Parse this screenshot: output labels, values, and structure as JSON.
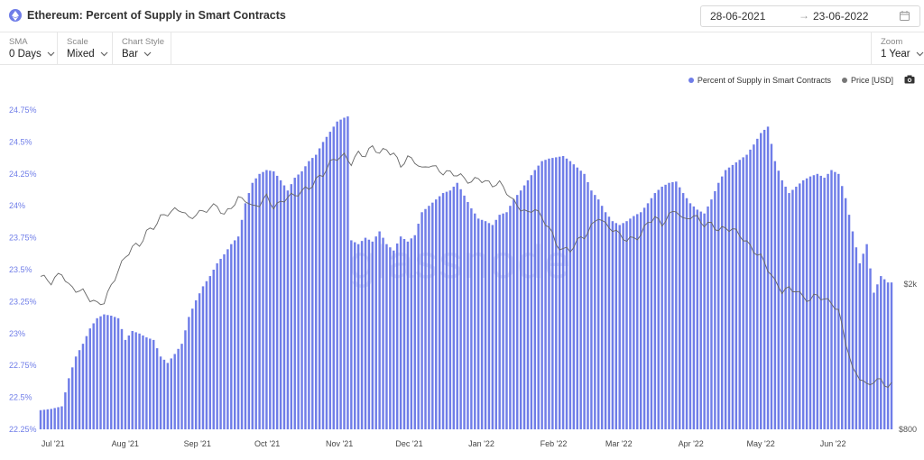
{
  "header": {
    "title": "Ethereum: Percent of Supply in Smart Contracts",
    "date_start": "28-06-2021",
    "date_arrow": "→",
    "date_end": "23-06-2022"
  },
  "controls": [
    {
      "label": "SMA",
      "value": "0 Days"
    },
    {
      "label": "Scale",
      "value": "Mixed"
    },
    {
      "label": "Chart Style",
      "value": "Bar"
    }
  ],
  "zoom": {
    "label": "Zoom",
    "value": "1 Year"
  },
  "legend": [
    {
      "name": "Percent of Supply in Smart Contracts",
      "color": "#6f7de8"
    },
    {
      "name": "Price [USD]",
      "color": "#777777"
    }
  ],
  "watermark": "glassnode",
  "icons": {
    "asset": "ethereum-icon",
    "calendar": "calendar-icon",
    "dropdown": "chevron-down-icon",
    "export": "camera-icon"
  },
  "chart_data": {
    "type": "bar",
    "x_labels": [
      "Jul '21",
      "Aug '21",
      "Sep '21",
      "Oct '21",
      "Nov '21",
      "Dec '21",
      "Jan '22",
      "Feb '22",
      "Mar '22",
      "Apr '22",
      "May '22",
      "Jun '22"
    ],
    "y_left": {
      "ticks": [
        "22.25%",
        "22.5%",
        "22.75%",
        "23%",
        "23.25%",
        "23.5%",
        "23.75%",
        "24%",
        "24.25%",
        "24.5%",
        "24.75%"
      ],
      "range": [
        22.25,
        24.75
      ]
    },
    "y_right": {
      "ticks": [
        "$800",
        "$2k"
      ],
      "scale": "log",
      "range": [
        800,
        6000
      ]
    },
    "series": [
      {
        "name": "Percent of Supply in Smart Contracts",
        "kind": "bar",
        "points": [
          [
            0,
            22.4
          ],
          [
            3,
            22.41
          ],
          [
            6,
            22.43
          ],
          [
            8,
            22.65
          ],
          [
            10,
            22.82
          ],
          [
            12,
            22.92
          ],
          [
            14,
            23.04
          ],
          [
            16,
            23.12
          ],
          [
            18,
            23.15
          ],
          [
            20,
            23.14
          ],
          [
            22,
            23.12
          ],
          [
            24,
            22.95
          ],
          [
            26,
            23.02
          ],
          [
            28,
            23.0
          ],
          [
            30,
            22.97
          ],
          [
            32,
            22.95
          ],
          [
            34,
            22.82
          ],
          [
            36,
            22.77
          ],
          [
            38,
            22.84
          ],
          [
            40,
            22.92
          ],
          [
            42,
            23.13
          ],
          [
            44,
            23.26
          ],
          [
            46,
            23.37
          ],
          [
            48,
            23.45
          ],
          [
            50,
            23.55
          ],
          [
            52,
            23.62
          ],
          [
            54,
            23.7
          ],
          [
            56,
            23.76
          ],
          [
            58,
            24.02
          ],
          [
            60,
            24.18
          ],
          [
            62,
            24.25
          ],
          [
            64,
            24.28
          ],
          [
            66,
            24.27
          ],
          [
            68,
            24.2
          ],
          [
            70,
            24.12
          ],
          [
            72,
            24.22
          ],
          [
            74,
            24.27
          ],
          [
            76,
            24.35
          ],
          [
            78,
            24.4
          ],
          [
            80,
            24.5
          ],
          [
            82,
            24.58
          ],
          [
            84,
            24.66
          ],
          [
            86,
            24.69
          ],
          [
            87,
            24.7
          ],
          [
            88,
            23.73
          ],
          [
            90,
            23.7
          ],
          [
            92,
            23.75
          ],
          [
            94,
            23.72
          ],
          [
            96,
            23.8
          ],
          [
            98,
            23.7
          ],
          [
            100,
            23.65
          ],
          [
            102,
            23.76
          ],
          [
            104,
            23.72
          ],
          [
            106,
            23.77
          ],
          [
            108,
            23.95
          ],
          [
            110,
            24.0
          ],
          [
            112,
            24.05
          ],
          [
            114,
            24.1
          ],
          [
            116,
            24.12
          ],
          [
            118,
            24.18
          ],
          [
            120,
            24.08
          ],
          [
            122,
            23.98
          ],
          [
            124,
            23.9
          ],
          [
            126,
            23.88
          ],
          [
            128,
            23.85
          ],
          [
            130,
            23.93
          ],
          [
            132,
            23.95
          ],
          [
            134,
            24.05
          ],
          [
            136,
            24.12
          ],
          [
            138,
            24.2
          ],
          [
            140,
            24.28
          ],
          [
            142,
            24.35
          ],
          [
            144,
            24.37
          ],
          [
            146,
            24.38
          ],
          [
            148,
            24.39
          ],
          [
            150,
            24.35
          ],
          [
            152,
            24.3
          ],
          [
            154,
            24.25
          ],
          [
            156,
            24.12
          ],
          [
            158,
            24.05
          ],
          [
            160,
            23.95
          ],
          [
            162,
            23.88
          ],
          [
            164,
            23.85
          ],
          [
            166,
            23.88
          ],
          [
            168,
            23.92
          ],
          [
            170,
            23.95
          ],
          [
            172,
            24.02
          ],
          [
            174,
            24.1
          ],
          [
            176,
            24.15
          ],
          [
            178,
            24.18
          ],
          [
            180,
            24.19
          ],
          [
            182,
            24.1
          ],
          [
            184,
            24.02
          ],
          [
            186,
            23.97
          ],
          [
            188,
            23.94
          ],
          [
            190,
            24.05
          ],
          [
            192,
            24.18
          ],
          [
            194,
            24.28
          ],
          [
            196,
            24.32
          ],
          [
            198,
            24.36
          ],
          [
            200,
            24.4
          ],
          [
            202,
            24.48
          ],
          [
            204,
            24.57
          ],
          [
            206,
            24.62
          ],
          [
            208,
            24.35
          ],
          [
            210,
            24.2
          ],
          [
            212,
            24.1
          ],
          [
            214,
            24.15
          ],
          [
            216,
            24.2
          ],
          [
            218,
            24.23
          ],
          [
            220,
            24.25
          ],
          [
            222,
            24.22
          ],
          [
            224,
            24.28
          ],
          [
            226,
            24.25
          ],
          [
            228,
            24.06
          ],
          [
            230,
            23.8
          ],
          [
            232,
            23.55
          ],
          [
            234,
            23.7
          ],
          [
            236,
            23.32
          ],
          [
            238,
            23.45
          ],
          [
            240,
            23.4
          ],
          [
            241,
            23.4
          ]
        ]
      },
      {
        "name": "Price [USD]",
        "kind": "line",
        "points": [
          [
            0,
            2100
          ],
          [
            3,
            2000
          ],
          [
            6,
            2150
          ],
          [
            8,
            2000
          ],
          [
            10,
            1950
          ],
          [
            12,
            1900
          ],
          [
            14,
            1800
          ],
          [
            16,
            1750
          ],
          [
            18,
            1800
          ],
          [
            20,
            2000
          ],
          [
            22,
            2200
          ],
          [
            24,
            2350
          ],
          [
            26,
            2500
          ],
          [
            28,
            2550
          ],
          [
            30,
            2800
          ],
          [
            32,
            2900
          ],
          [
            34,
            3050
          ],
          [
            36,
            3100
          ],
          [
            38,
            3150
          ],
          [
            40,
            3200
          ],
          [
            42,
            3050
          ],
          [
            44,
            3150
          ],
          [
            46,
            3150
          ],
          [
            48,
            3200
          ],
          [
            50,
            3250
          ],
          [
            52,
            3100
          ],
          [
            54,
            3300
          ],
          [
            56,
            3450
          ],
          [
            58,
            3400
          ],
          [
            60,
            3200
          ],
          [
            62,
            3300
          ],
          [
            64,
            3500
          ],
          [
            66,
            3300
          ],
          [
            68,
            3350
          ],
          [
            70,
            3450
          ],
          [
            72,
            3450
          ],
          [
            74,
            3600
          ],
          [
            76,
            3700
          ],
          [
            78,
            3900
          ],
          [
            80,
            4000
          ],
          [
            82,
            4250
          ],
          [
            84,
            4400
          ],
          [
            86,
            4500
          ],
          [
            88,
            4350
          ],
          [
            90,
            4600
          ],
          [
            92,
            4500
          ],
          [
            94,
            4700
          ],
          [
            96,
            4550
          ],
          [
            98,
            4700
          ],
          [
            100,
            4600
          ],
          [
            102,
            4250
          ],
          [
            104,
            4400
          ],
          [
            106,
            4300
          ],
          [
            108,
            4100
          ],
          [
            110,
            4300
          ],
          [
            112,
            4200
          ],
          [
            114,
            4050
          ],
          [
            116,
            4000
          ],
          [
            118,
            3950
          ],
          [
            120,
            3900
          ],
          [
            122,
            3850
          ],
          [
            124,
            3950
          ],
          [
            126,
            3800
          ],
          [
            128,
            3700
          ],
          [
            130,
            3750
          ],
          [
            132,
            3600
          ],
          [
            134,
            3400
          ],
          [
            136,
            3250
          ],
          [
            138,
            3100
          ],
          [
            140,
            3200
          ],
          [
            142,
            3000
          ],
          [
            144,
            2900
          ],
          [
            146,
            2600
          ],
          [
            148,
            2500
          ],
          [
            150,
            2450
          ],
          [
            152,
            2600
          ],
          [
            154,
            2700
          ],
          [
            156,
            2900
          ],
          [
            158,
            3100
          ],
          [
            160,
            2900
          ],
          [
            162,
            2800
          ],
          [
            164,
            2700
          ],
          [
            166,
            2650
          ],
          [
            168,
            2700
          ],
          [
            170,
            2750
          ],
          [
            172,
            2950
          ],
          [
            174,
            3000
          ],
          [
            176,
            2900
          ],
          [
            178,
            3100
          ],
          [
            180,
            3250
          ],
          [
            182,
            3000
          ],
          [
            184,
            3050
          ],
          [
            186,
            3000
          ],
          [
            188,
            2900
          ],
          [
            190,
            2950
          ],
          [
            192,
            2850
          ],
          [
            194,
            2850
          ],
          [
            196,
            2800
          ],
          [
            198,
            2700
          ],
          [
            200,
            2600
          ],
          [
            202,
            2500
          ],
          [
            204,
            2400
          ],
          [
            206,
            2200
          ],
          [
            208,
            2000
          ],
          [
            210,
            1900
          ],
          [
            212,
            1950
          ],
          [
            214,
            1950
          ],
          [
            216,
            1850
          ],
          [
            218,
            1800
          ],
          [
            220,
            1850
          ],
          [
            222,
            1800
          ],
          [
            224,
            1800
          ],
          [
            226,
            1700
          ],
          [
            228,
            1400
          ],
          [
            230,
            1150
          ],
          [
            232,
            1100
          ],
          [
            234,
            1050
          ],
          [
            236,
            1100
          ],
          [
            238,
            1100
          ],
          [
            240,
            1050
          ],
          [
            241,
            1050
          ]
        ]
      }
    ]
  }
}
